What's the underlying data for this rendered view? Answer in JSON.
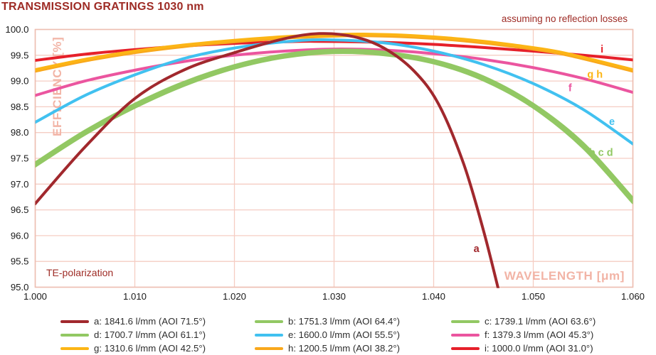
{
  "header": {
    "title": "TRANSMISSION GRATINGS 1030 nm"
  },
  "chart_data": {
    "type": "line",
    "title": "TRANSMISSION GRATINGS 1030 nm",
    "note": "assuming no reflection losses",
    "polarization_label": "TE-polarization",
    "xlabel": "WAVELENGTH [μm]",
    "ylabel": "EFFICIENCY [%]",
    "xlim": [
      1.0,
      1.06
    ],
    "ylim": [
      95.0,
      100.0
    ],
    "x_ticks": [
      "1.000",
      "1.010",
      "1.020",
      "1.030",
      "1.040",
      "1.050",
      "1.060"
    ],
    "y_ticks": [
      "100.0",
      "99.5",
      "99.0",
      "98.5",
      "98.0",
      "97.5",
      "97.0",
      "96.5",
      "96.0",
      "95.5",
      "95.0"
    ],
    "grid": true,
    "legend_position": "bottom",
    "series": [
      {
        "id": "a",
        "label": "a: 1841.6 l/mm (AOI 71.5°)",
        "lines_per_mm": 1841.6,
        "aoi_deg": 71.5,
        "color": "#a1282d",
        "points": [
          [
            1.0,
            96.62
          ],
          [
            1.005,
            97.72
          ],
          [
            1.01,
            98.66
          ],
          [
            1.015,
            99.22
          ],
          [
            1.02,
            99.55
          ],
          [
            1.025,
            99.82
          ],
          [
            1.0285,
            99.92
          ],
          [
            1.032,
            99.86
          ],
          [
            1.035,
            99.64
          ],
          [
            1.038,
            99.2
          ],
          [
            1.0405,
            98.55
          ],
          [
            1.043,
            97.4
          ],
          [
            1.045,
            96.1
          ],
          [
            1.0466,
            94.88
          ]
        ]
      },
      {
        "id": "b",
        "label": "b: 1751.3 l/mm (AOI 64.4°)",
        "lines_per_mm": 1751.3,
        "aoi_deg": 64.4,
        "color": "#92c863",
        "points": [
          [
            1.0,
            97.38
          ],
          [
            1.005,
            98.0
          ],
          [
            1.01,
            98.52
          ],
          [
            1.015,
            98.95
          ],
          [
            1.02,
            99.28
          ],
          [
            1.025,
            99.49
          ],
          [
            1.03,
            99.58
          ],
          [
            1.035,
            99.54
          ],
          [
            1.04,
            99.38
          ],
          [
            1.045,
            99.05
          ],
          [
            1.05,
            98.52
          ],
          [
            1.055,
            97.75
          ],
          [
            1.06,
            96.68
          ]
        ]
      },
      {
        "id": "c",
        "label": "c: 1739.1 l/mm (AOI 63.6°)",
        "lines_per_mm": 1739.1,
        "aoi_deg": 63.6,
        "color": "#92c863",
        "points": [
          [
            1.0,
            97.41
          ],
          [
            1.005,
            98.03
          ],
          [
            1.01,
            98.55
          ],
          [
            1.015,
            98.98
          ],
          [
            1.02,
            99.3
          ],
          [
            1.025,
            99.51
          ],
          [
            1.03,
            99.6
          ],
          [
            1.035,
            99.56
          ],
          [
            1.04,
            99.4
          ],
          [
            1.045,
            99.08
          ],
          [
            1.05,
            98.55
          ],
          [
            1.055,
            97.79
          ],
          [
            1.06,
            96.72
          ]
        ]
      },
      {
        "id": "d",
        "label": "d: 1700.7 l/mm (AOI 61.1°)",
        "lines_per_mm": 1700.7,
        "aoi_deg": 61.1,
        "color": "#92c863",
        "points": [
          [
            1.0,
            97.35
          ],
          [
            1.005,
            97.97
          ],
          [
            1.01,
            98.49
          ],
          [
            1.015,
            98.92
          ],
          [
            1.02,
            99.25
          ],
          [
            1.025,
            99.46
          ],
          [
            1.03,
            99.55
          ],
          [
            1.035,
            99.51
          ],
          [
            1.04,
            99.35
          ],
          [
            1.045,
            99.02
          ],
          [
            1.05,
            98.49
          ],
          [
            1.055,
            97.71
          ],
          [
            1.06,
            96.64
          ]
        ]
      },
      {
        "id": "e",
        "label": "e: 1600.0 l/mm (AOI 55.5°)",
        "lines_per_mm": 1600.0,
        "aoi_deg": 55.5,
        "color": "#41c1f0",
        "points": [
          [
            1.0,
            98.2
          ],
          [
            1.005,
            98.72
          ],
          [
            1.01,
            99.12
          ],
          [
            1.015,
            99.44
          ],
          [
            1.02,
            99.64
          ],
          [
            1.025,
            99.76
          ],
          [
            1.029,
            99.8
          ],
          [
            1.035,
            99.74
          ],
          [
            1.04,
            99.58
          ],
          [
            1.045,
            99.32
          ],
          [
            1.05,
            98.95
          ],
          [
            1.055,
            98.45
          ],
          [
            1.06,
            97.78
          ]
        ]
      },
      {
        "id": "f",
        "label": "f: 1379.3 l/mm (AOI 45.3°)",
        "lines_per_mm": 1379.3,
        "aoi_deg": 45.3,
        "color": "#eb559f",
        "points": [
          [
            1.0,
            98.72
          ],
          [
            1.005,
            99.0
          ],
          [
            1.01,
            99.21
          ],
          [
            1.015,
            99.38
          ],
          [
            1.02,
            99.5
          ],
          [
            1.025,
            99.58
          ],
          [
            1.03,
            99.62
          ],
          [
            1.035,
            99.6
          ],
          [
            1.04,
            99.53
          ],
          [
            1.045,
            99.42
          ],
          [
            1.05,
            99.26
          ],
          [
            1.055,
            99.05
          ],
          [
            1.06,
            98.78
          ]
        ]
      },
      {
        "id": "g",
        "label": "g: 1310.6 l/mm (AOI 42.5°)",
        "lines_per_mm": 1310.6,
        "aoi_deg": 42.5,
        "color": "#fcb515",
        "points": [
          [
            1.0,
            99.22
          ],
          [
            1.005,
            99.42
          ],
          [
            1.01,
            99.58
          ],
          [
            1.015,
            99.7
          ],
          [
            1.02,
            99.79
          ],
          [
            1.025,
            99.86
          ],
          [
            1.03,
            99.9
          ],
          [
            1.033,
            99.91
          ],
          [
            1.038,
            99.88
          ],
          [
            1.043,
            99.81
          ],
          [
            1.048,
            99.7
          ],
          [
            1.053,
            99.55
          ],
          [
            1.06,
            99.22
          ]
        ]
      },
      {
        "id": "h",
        "label": "h: 1200.5 l/mm (AOI 38.2°)",
        "lines_per_mm": 1200.5,
        "aoi_deg": 38.2,
        "color": "#f9a81c",
        "points": [
          [
            1.0,
            99.19
          ],
          [
            1.005,
            99.39
          ],
          [
            1.01,
            99.55
          ],
          [
            1.015,
            99.67
          ],
          [
            1.02,
            99.76
          ],
          [
            1.025,
            99.83
          ],
          [
            1.03,
            99.87
          ],
          [
            1.033,
            99.88
          ],
          [
            1.038,
            99.85
          ],
          [
            1.043,
            99.78
          ],
          [
            1.048,
            99.67
          ],
          [
            1.053,
            99.52
          ],
          [
            1.06,
            99.19
          ]
        ]
      },
      {
        "id": "i",
        "label": "i: 1000.0 l/mm (AOI 31.0°)",
        "lines_per_mm": 1000.0,
        "aoi_deg": 31.0,
        "color": "#e6202a",
        "points": [
          [
            1.0,
            99.4
          ],
          [
            1.005,
            99.52
          ],
          [
            1.01,
            99.61
          ],
          [
            1.015,
            99.68
          ],
          [
            1.02,
            99.73
          ],
          [
            1.025,
            99.76
          ],
          [
            1.028,
            99.77
          ],
          [
            1.035,
            99.75
          ],
          [
            1.04,
            99.71
          ],
          [
            1.045,
            99.65
          ],
          [
            1.05,
            99.58
          ],
          [
            1.055,
            99.5
          ],
          [
            1.06,
            99.41
          ]
        ]
      }
    ],
    "curve_annotations": [
      {
        "text": "a",
        "x": 1.0443,
        "y": 95.68,
        "color": "#a1282d"
      },
      {
        "text": "i",
        "x": 1.0569,
        "y": 99.55,
        "color": "#e6202a"
      },
      {
        "text": "g h",
        "x": 1.0562,
        "y": 99.06,
        "color": "#fcb515"
      },
      {
        "text": "f",
        "x": 1.0537,
        "y": 98.8,
        "color": "#eb559f"
      },
      {
        "text": "e",
        "x": 1.0579,
        "y": 98.15,
        "color": "#41c1f0"
      },
      {
        "text": "b c d",
        "x": 1.0568,
        "y": 97.55,
        "color": "#92c863"
      }
    ]
  },
  "legend": {
    "order": [
      "a",
      "b",
      "c",
      "d",
      "e",
      "f",
      "g",
      "h",
      "i"
    ]
  },
  "colors": {
    "title_text": "#9e2b25",
    "axis_label_text": "#f2b4a6",
    "grid_line": "#f5cdc3",
    "plot_border": "#edbfb2",
    "tick_text": "#1a1a1a",
    "legend_text": "#2d2d2d",
    "background": "#ffffff"
  }
}
